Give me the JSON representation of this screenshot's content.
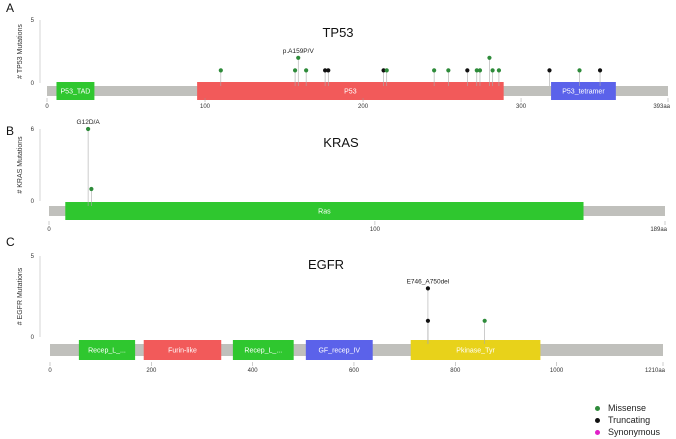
{
  "colors": {
    "missense": "#2e8b3a",
    "truncating": "#111111",
    "synonymous": "#e020c8",
    "backbone": "#c0c0bc"
  },
  "legend": {
    "items": [
      {
        "label": "Missense",
        "color": "#2e8b3a"
      },
      {
        "label": "Truncating",
        "color": "#111111"
      },
      {
        "label": "Synonymous",
        "color": "#e020c8"
      }
    ]
  },
  "chart_data": [
    {
      "type": "lollipop",
      "panel": "A",
      "title": "TP53",
      "ylabel": "# TP53 Mutations",
      "ylim": [
        0,
        5
      ],
      "yticks": [
        "5",
        "0"
      ],
      "length": 393,
      "xticks": [
        "0",
        "100",
        "200",
        "300",
        "393aa"
      ],
      "domains": [
        {
          "name": "P53_TAD",
          "start": 6,
          "end": 30,
          "color": "#2fc72f"
        },
        {
          "name": "P53",
          "start": 95,
          "end": 289,
          "color": "#f25a5a"
        },
        {
          "name": "P53_tetramer",
          "start": 319,
          "end": 360,
          "color": "#5b62ea"
        }
      ],
      "mutations": [
        {
          "pos": 110,
          "count": 1,
          "type": "missense"
        },
        {
          "pos": 157,
          "count": 1,
          "type": "missense"
        },
        {
          "pos": 159,
          "count": 2,
          "type": "missense",
          "label": "p.A159P/V"
        },
        {
          "pos": 164,
          "count": 1,
          "type": "missense"
        },
        {
          "pos": 176,
          "count": 1,
          "type": "truncating"
        },
        {
          "pos": 178,
          "count": 1,
          "type": "truncating"
        },
        {
          "pos": 213,
          "count": 1,
          "type": "truncating"
        },
        {
          "pos": 215,
          "count": 1,
          "type": "missense"
        },
        {
          "pos": 245,
          "count": 1,
          "type": "missense"
        },
        {
          "pos": 254,
          "count": 1,
          "type": "missense"
        },
        {
          "pos": 266,
          "count": 1,
          "type": "truncating"
        },
        {
          "pos": 272,
          "count": 1,
          "type": "missense"
        },
        {
          "pos": 274,
          "count": 1,
          "type": "missense"
        },
        {
          "pos": 280,
          "count": 2,
          "type": "missense"
        },
        {
          "pos": 282,
          "count": 1,
          "type": "missense"
        },
        {
          "pos": 286,
          "count": 1,
          "type": "missense"
        },
        {
          "pos": 318,
          "count": 1,
          "type": "truncating"
        },
        {
          "pos": 337,
          "count": 1,
          "type": "missense"
        },
        {
          "pos": 350,
          "count": 1,
          "type": "truncating"
        }
      ]
    },
    {
      "type": "lollipop",
      "panel": "B",
      "title": "KRAS",
      "ylabel": "# KRAS Mutations",
      "ylim": [
        0,
        6
      ],
      "yticks": [
        "6",
        "0"
      ],
      "length": 189,
      "xticks": [
        "0",
        "100",
        "189aa"
      ],
      "domains": [
        {
          "name": "Ras",
          "start": 5,
          "end": 164,
          "color": "#2fc72f"
        }
      ],
      "mutations": [
        {
          "pos": 12,
          "count": 6,
          "type": "missense",
          "label": "G12D/A"
        },
        {
          "pos": 13,
          "count": 1,
          "type": "missense"
        }
      ]
    },
    {
      "type": "lollipop",
      "panel": "C",
      "title": "EGFR",
      "ylabel": "# EGFR Mutations",
      "ylim": [
        0,
        5
      ],
      "yticks": [
        "5",
        "0"
      ],
      "length": 1210,
      "xticks": [
        "0",
        "200",
        "400",
        "600",
        "800",
        "1000",
        "1210aa"
      ],
      "domains": [
        {
          "name": "Recep_L_...",
          "start": 57,
          "end": 168,
          "color": "#2fc72f"
        },
        {
          "name": "Furin-like",
          "start": 185,
          "end": 338,
          "color": "#f25a5a"
        },
        {
          "name": "Recep_L_...",
          "start": 361,
          "end": 481,
          "color": "#2fc72f"
        },
        {
          "name": "GF_recep_IV",
          "start": 505,
          "end": 637,
          "color": "#5b62ea"
        },
        {
          "name": "Pkinase_Tyr",
          "start": 712,
          "end": 968,
          "color": "#e8d21a"
        }
      ],
      "mutations": [
        {
          "pos": 746,
          "count": 3,
          "type": "truncating",
          "label": "E746_A750del"
        },
        {
          "pos": 746,
          "count": 1,
          "type": "truncating"
        },
        {
          "pos": 858,
          "count": 1,
          "type": "missense"
        }
      ]
    }
  ]
}
